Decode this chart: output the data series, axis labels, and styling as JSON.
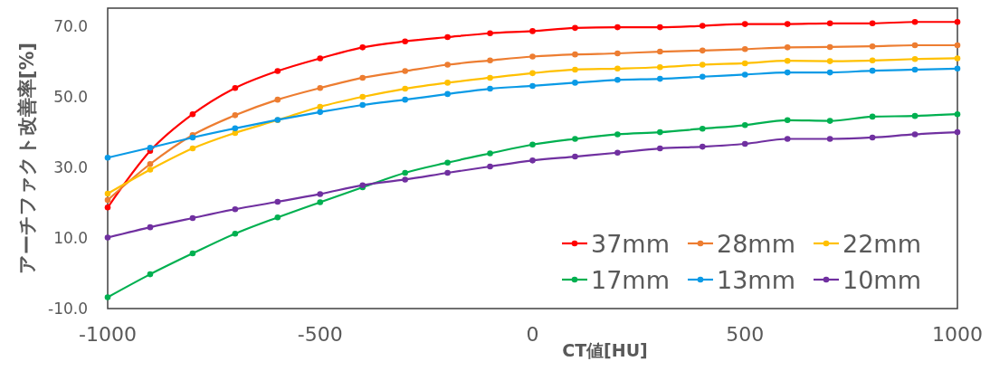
{
  "chart_data": {
    "type": "line",
    "xlabel": "CT値[HU]",
    "ylabel": "アーチファクト改善率[%]",
    "x": [
      -1000,
      -900,
      -800,
      -700,
      -600,
      -500,
      -400,
      -300,
      -200,
      -100,
      0,
      100,
      200,
      300,
      400,
      500,
      600,
      700,
      800,
      900,
      1000
    ],
    "xlim": [
      -1000,
      1000
    ],
    "xticks": [
      -1000,
      -500,
      0,
      500,
      1000
    ],
    "ylim": [
      -10,
      75
    ],
    "yticks": [
      {
        "value": -10,
        "label": "-10.0"
      },
      {
        "value": 10,
        "label": "10.0"
      },
      {
        "value": 30,
        "label": "30.0"
      },
      {
        "value": 50,
        "label": "50.0"
      },
      {
        "value": 70,
        "label": "70.0"
      }
    ],
    "grid": false,
    "legend": "bottom right",
    "marker": "circle",
    "line_style": "solid",
    "series": [
      {
        "name": "37mm",
        "color": "#ff0000",
        "values": [
          18.6,
          34.6,
          45.0,
          52.4,
          57.2,
          60.8,
          63.9,
          65.6,
          66.8,
          67.9,
          68.5,
          69.4,
          69.6,
          69.6,
          70.0,
          70.5,
          70.5,
          70.7,
          70.7,
          71.1,
          71.1
        ]
      },
      {
        "name": "28mm",
        "color": "#ed7d31",
        "values": [
          20.7,
          30.9,
          39.1,
          44.7,
          49.1,
          52.4,
          55.3,
          57.2,
          59.0,
          60.2,
          61.3,
          61.9,
          62.2,
          62.7,
          63.0,
          63.4,
          63.9,
          64.0,
          64.2,
          64.5,
          64.5
        ]
      },
      {
        "name": "22mm",
        "color": "#ffc000",
        "values": [
          22.5,
          29.3,
          35.3,
          39.7,
          43.3,
          47.1,
          49.9,
          52.2,
          53.9,
          55.3,
          56.6,
          57.6,
          57.9,
          58.3,
          59.0,
          59.4,
          60.1,
          60.0,
          60.2,
          60.6,
          60.8
        ]
      },
      {
        "name": "17mm",
        "color": "#00b050",
        "values": [
          -6.8,
          -0.3,
          5.6,
          11.2,
          15.8,
          20.1,
          24.3,
          28.4,
          31.3,
          33.9,
          36.4,
          38.0,
          39.3,
          39.9,
          40.9,
          41.9,
          43.3,
          43.1,
          44.3,
          44.5,
          45.0
        ]
      },
      {
        "name": "13mm",
        "color": "#0a9ae6",
        "values": [
          32.7,
          35.5,
          38.4,
          41.0,
          43.4,
          45.6,
          47.6,
          49.1,
          50.7,
          52.2,
          53.0,
          53.9,
          54.7,
          55.0,
          55.6,
          56.2,
          56.8,
          56.8,
          57.3,
          57.6,
          57.9
        ]
      },
      {
        "name": "10mm",
        "color": "#7030a0",
        "values": [
          10.1,
          13.0,
          15.6,
          18.1,
          20.2,
          22.4,
          24.9,
          26.5,
          28.4,
          30.2,
          31.9,
          33.0,
          34.1,
          35.3,
          35.8,
          36.6,
          38.0,
          38.0,
          38.4,
          39.3,
          39.9
        ]
      }
    ]
  }
}
